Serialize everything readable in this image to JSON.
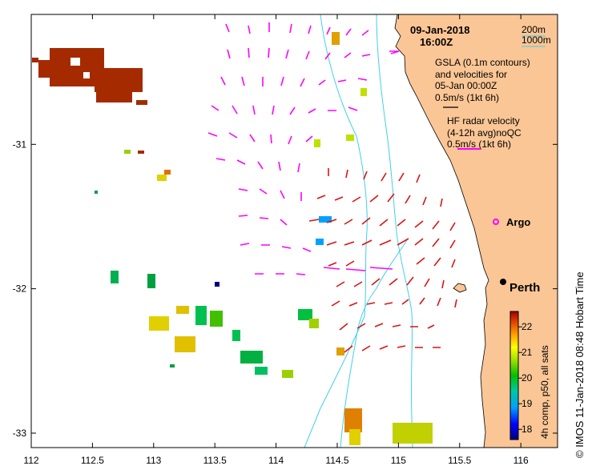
{
  "title": {
    "date": "09-Jan-2018",
    "time": "16:00Z"
  },
  "isobath_legend": [
    "200m",
    "1000m"
  ],
  "gsla_legend": {
    "lines": [
      "GSLA (0.1m contours)",
      "and velocities for",
      "05-Jan 00:00Z",
      "0.5m/s (1kt 6h)"
    ]
  },
  "hf_legend": {
    "lines": [
      "HF radar velocity",
      "(4-12h avg)noQC",
      "0.5m/s (1kt 6h)"
    ]
  },
  "places": [
    {
      "name": "Argo",
      "lon": 115.87,
      "lat": -31.53
    },
    {
      "name": "Perth",
      "lon": 115.86,
      "lat": -31.95
    }
  ],
  "colorbar": {
    "label": "4h comp, p50, all sats",
    "ticks": [
      "22",
      "21",
      "20",
      "19",
      "18"
    ],
    "min": 17.6,
    "max": 22.6
  },
  "side_text": "© IMOS 11-Jan-2018 08:48 Hobart Time",
  "axes": {
    "x_ticks": [
      "112",
      "112.5",
      "113",
      "113.5",
      "114",
      "114.5",
      "115",
      "115.5",
      "116"
    ],
    "y_ticks": [
      "-31",
      "-32",
      "-33"
    ],
    "xlim": [
      112,
      116.3
    ],
    "ylim": [
      -33.1,
      -30.1
    ]
  },
  "colors": {
    "land": "#fbc695",
    "isobath": "#40d0e8",
    "gsla_vectors": "#ff00ff",
    "hf_vectors": "#dd1111",
    "sst_warm": "#a52a00"
  }
}
